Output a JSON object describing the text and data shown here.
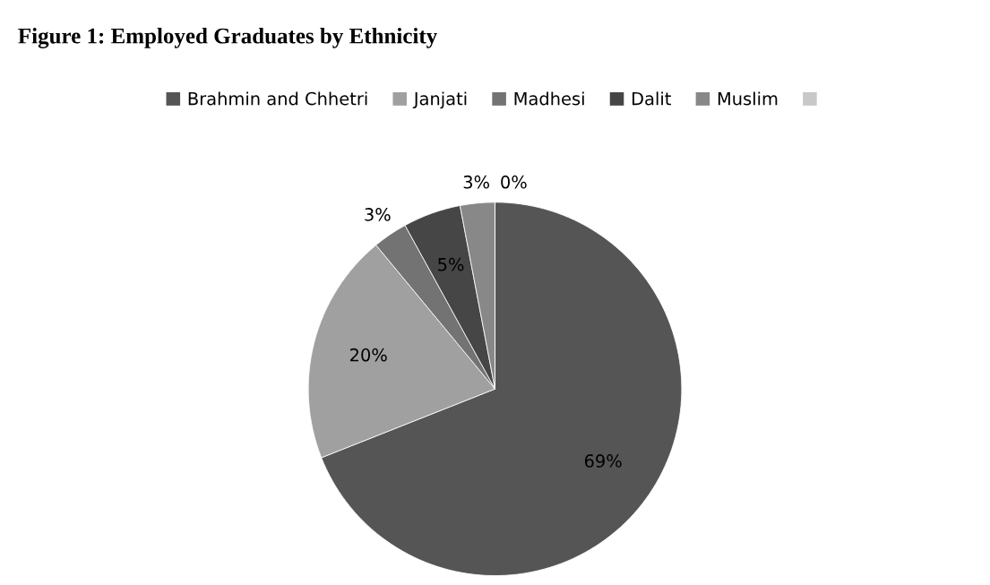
{
  "chart_data": {
    "type": "pie",
    "title": "Figure 1: Employed Graduates by Ethnicity",
    "categories": [
      "Brahmin and Chhetri",
      "Janjati",
      "Madhesi",
      "Dalit",
      "Muslim",
      null
    ],
    "values": [
      69,
      20,
      3,
      5,
      3,
      0
    ],
    "value_labels": [
      "69%",
      "20%",
      "3%",
      "5%",
      "3%",
      "0%"
    ],
    "colors": [
      "#555555",
      "#a0a0a0",
      "#737373",
      "#464646",
      "#888888",
      "#c8c8c8"
    ],
    "legend": "top"
  }
}
